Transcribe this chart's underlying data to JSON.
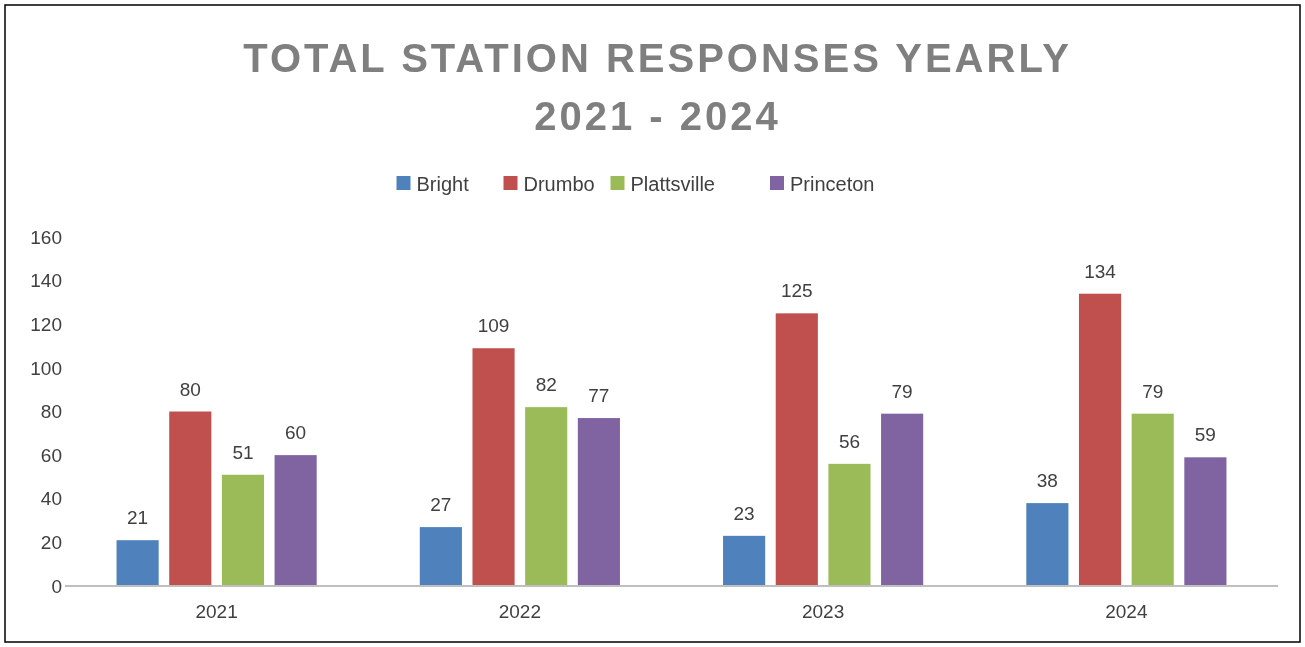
{
  "chart_data": {
    "type": "bar",
    "title": "TOTAL STATION RESPONSES YEARLY\n2021 - 2024",
    "categories": [
      "2021",
      "2022",
      "2023",
      "2024"
    ],
    "series": [
      {
        "name": "Bright",
        "color": "#4f81bd",
        "values": [
          21,
          27,
          23,
          38
        ]
      },
      {
        "name": "Drumbo",
        "color": "#c0504d",
        "values": [
          80,
          109,
          125,
          134
        ]
      },
      {
        "name": "Plattsville",
        "color": "#9bbb59",
        "values": [
          51,
          82,
          56,
          79
        ]
      },
      {
        "name": "Princeton",
        "color": "#8064a2",
        "values": [
          60,
          77,
          79,
          59
        ]
      }
    ],
    "ylim": [
      0,
      160
    ],
    "yticks": [
      0,
      20,
      40,
      60,
      80,
      100,
      120,
      140,
      160
    ],
    "grid": false,
    "legend": "top",
    "data_labels": true
  }
}
